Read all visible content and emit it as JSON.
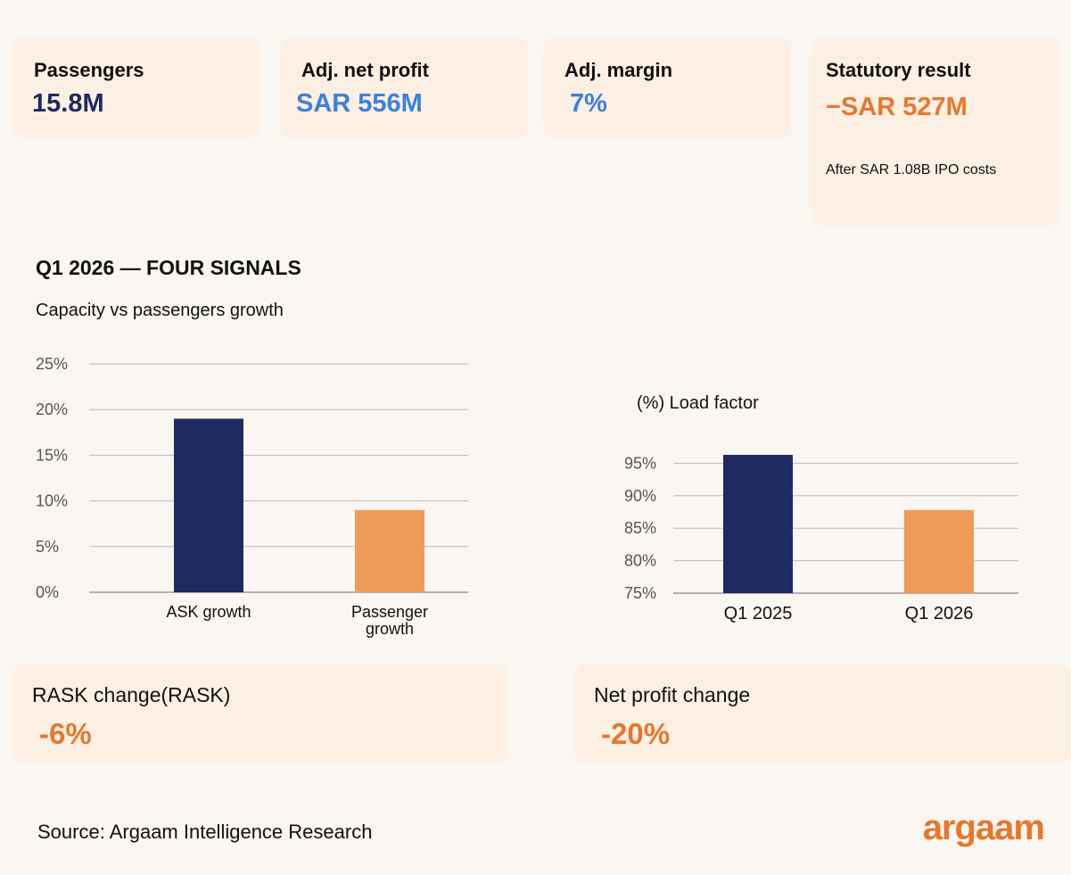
{
  "kpis": [
    {
      "label": "Passengers",
      "value": "15.8M",
      "color": "#1f2a60"
    },
    {
      "label": "Adj. net profit",
      "value": "SAR 556M",
      "color": "#3a80e0"
    },
    {
      "label": "Adj. margin",
      "value": "7%",
      "color": "#3a80e0"
    },
    {
      "label": "Statutory result",
      "value": "−SAR 527M",
      "note": "After SAR 1.08B IPO costs",
      "color": "#e6782c"
    }
  ],
  "section_title": "Q1 2026 — FOUR SIGNALS",
  "bottom_cards": [
    {
      "label": "RASK change(RASK)",
      "value": "-6%"
    },
    {
      "label": "Net profit change",
      "value": "-20%"
    }
  ],
  "source": "Source: Argaam Intelligence Research",
  "logo": "argaam",
  "colors": {
    "navy": "#1f2a60",
    "orange": "#f09a57",
    "accent": "#e6782c"
  },
  "chart_data": [
    {
      "type": "bar",
      "title": "Capacity vs passengers growth",
      "categories": [
        "ASK growth",
        "Passenger growth"
      ],
      "category_lines": [
        [
          "ASK growth"
        ],
        [
          "Passenger",
          "growth"
        ]
      ],
      "values": [
        19,
        9
      ],
      "bar_colors": [
        "#1f2a60",
        "#f09a57"
      ],
      "ylim": [
        0,
        25
      ],
      "yticks": [
        0,
        5,
        10,
        15,
        20,
        25
      ],
      "ytick_labels": [
        "0%",
        "5%",
        "10%",
        "15%",
        "20%",
        "25%"
      ],
      "grid": true
    },
    {
      "type": "bar",
      "title": "(%) Load factor",
      "categories": [
        "Q1 2025",
        "Q1 2026"
      ],
      "values": [
        96.3,
        87.8
      ],
      "bar_colors": [
        "#1f2a60",
        "#f09a57"
      ],
      "ylim": [
        75,
        100
      ],
      "yticks": [
        75,
        80,
        85,
        90,
        95
      ],
      "ytick_labels": [
        "75%",
        "80%",
        "85%",
        "90%",
        "95%"
      ],
      "grid": true
    }
  ]
}
